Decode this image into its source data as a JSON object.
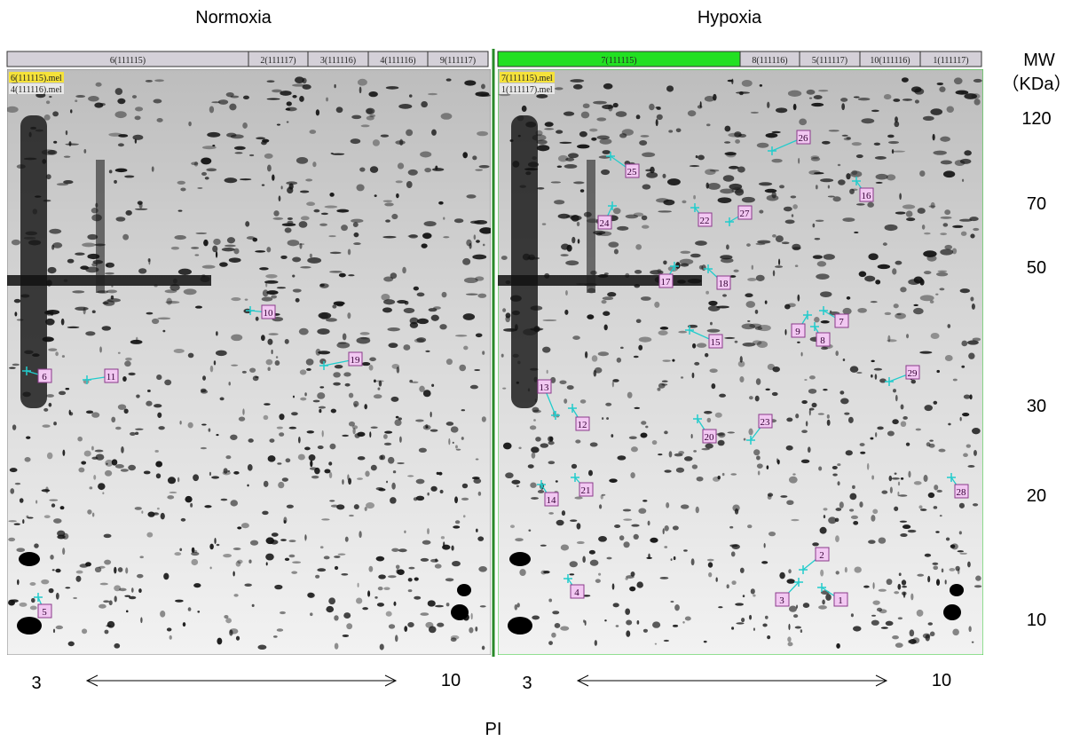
{
  "panels": [
    {
      "title": "Normoxia",
      "tabs": [
        "6(111115)",
        "2(111117)",
        "3(111116)",
        "4(111116)",
        "9(111117)"
      ],
      "files": [
        "6(111115).mel",
        "4(111116).mel"
      ],
      "spots": [
        "10",
        "6",
        "11",
        "19",
        "5"
      ],
      "pi_range": [
        "3",
        "10"
      ]
    },
    {
      "title": "Hypoxia",
      "tabs": [
        "7(111115)",
        "8(111116)",
        "5(111117)",
        "10(111116)",
        "1(111117)"
      ],
      "files": [
        "7(111115).mel",
        "1(111117).mel"
      ],
      "spots": [
        "26",
        "25",
        "16",
        "24",
        "22",
        "27",
        "17",
        "18",
        "7",
        "9",
        "8",
        "15",
        "29",
        "13",
        "12",
        "23",
        "20",
        "28",
        "14",
        "21",
        "2",
        "4",
        "3",
        "1"
      ],
      "pi_range": [
        "3",
        "10"
      ]
    }
  ],
  "mw_axis": {
    "title": "MW",
    "unit": "（KDa）",
    "ticks": [
      "120",
      "70",
      "50",
      "30",
      "20",
      "10"
    ]
  },
  "pi_axis": {
    "title": "PI"
  }
}
